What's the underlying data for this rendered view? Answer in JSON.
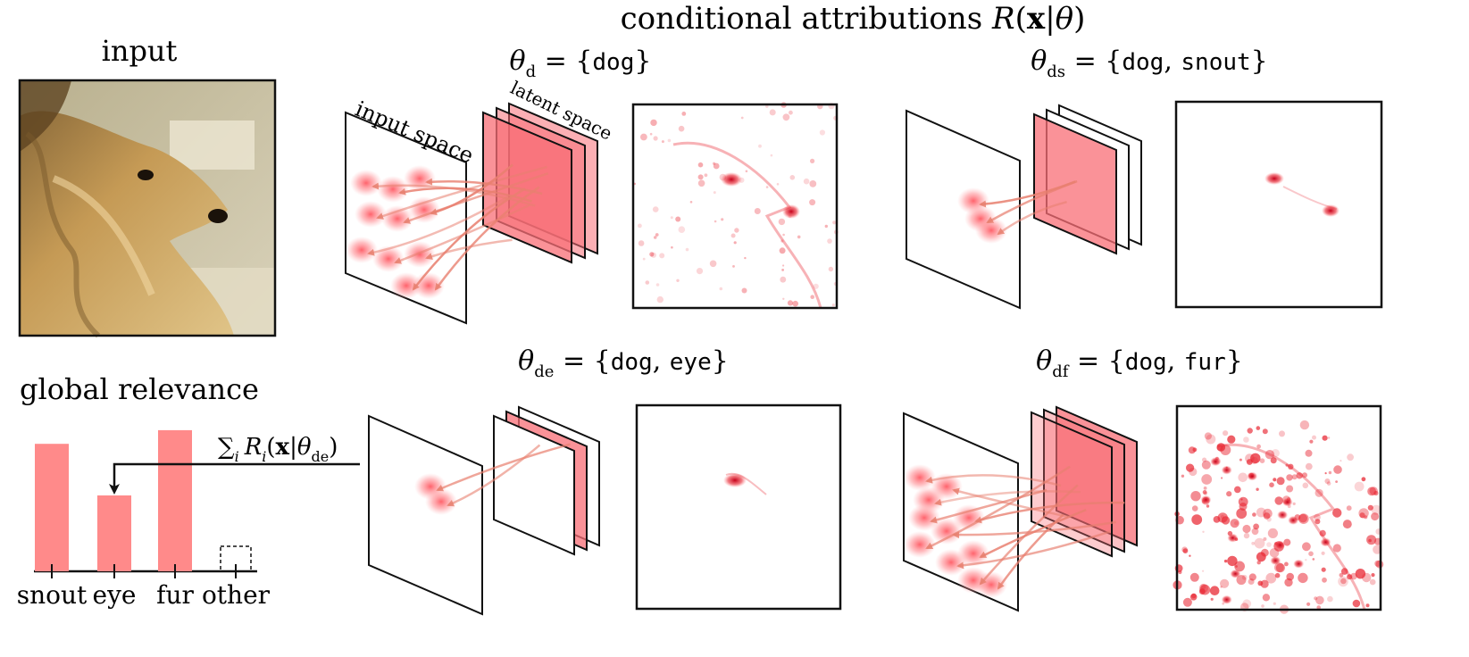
{
  "title": {
    "prefix": "conditional attributions ",
    "math": "R(x|θ)"
  },
  "input_panel": {
    "label": "input"
  },
  "global_relevance": {
    "title": "global relevance",
    "sum_label": "∑i Ri(x|θde)",
    "categories": [
      "snout",
      "eye",
      "fur",
      "other"
    ],
    "values": [
      0.84,
      0.5,
      0.93,
      0.0
    ],
    "highlighted": "eye"
  },
  "panels": [
    {
      "id": "d",
      "theta": "θd",
      "concepts": [
        "dog"
      ],
      "space_labels": {
        "input": "input space",
        "latent": "latent space"
      }
    },
    {
      "id": "ds",
      "theta": "θds",
      "concepts": [
        "dog",
        "snout"
      ]
    },
    {
      "id": "de",
      "theta": "θde",
      "concepts": [
        "dog",
        "eye"
      ]
    },
    {
      "id": "df",
      "theta": "θdf",
      "concepts": [
        "dog",
        "fur"
      ]
    }
  ],
  "colors": {
    "bar": "#ff8a8a",
    "heat": "#e8232f",
    "arrow": "#e88070",
    "frame": "#111111"
  }
}
